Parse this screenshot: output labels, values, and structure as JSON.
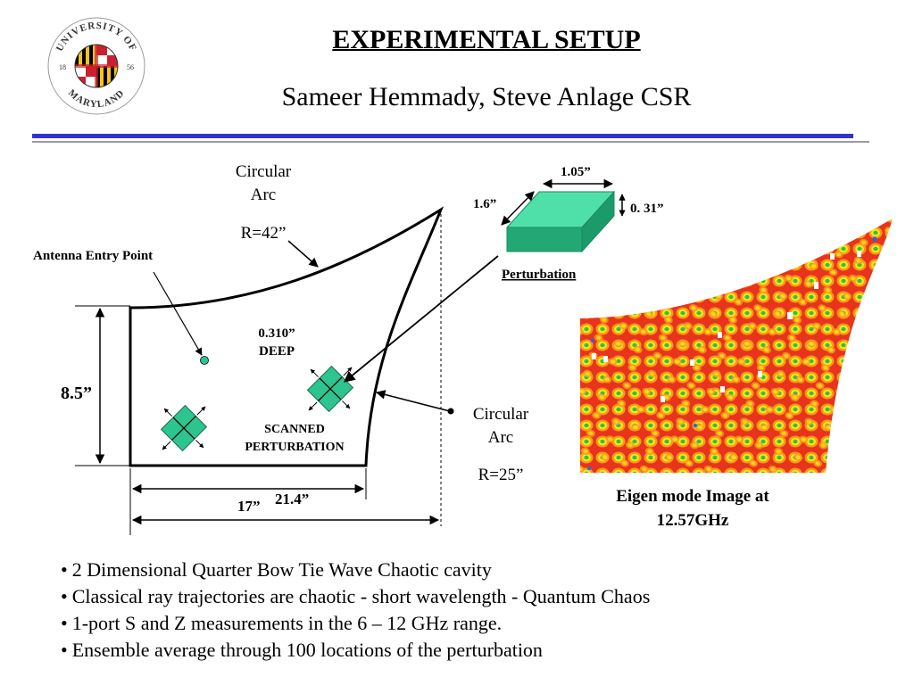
{
  "title": "EXPERIMENTAL SETUP",
  "subtitle": "Sameer Hemmady, Steve Anlage CSR",
  "logo": {
    "top_text": "UNIVERSITY OF",
    "bottom_text": "MARYLAND",
    "year_left": "18",
    "year_right": "56",
    "colors": [
      "#cc1f2f",
      "#f5c518",
      "#000000",
      "#ffffff"
    ]
  },
  "diagram": {
    "arc_top_label_line1": "Circular",
    "arc_top_label_line2": "Arc",
    "arc_top_radius": "R=42”",
    "antenna_label": "Antenna Entry Point",
    "depth_line1": "0.310”",
    "depth_line2": "DEEP",
    "scanned_line1": "SCANNED",
    "scanned_line2": "PERTURBATION",
    "height_label": "8.5”",
    "width_inner_label": "17”",
    "width_outer_label": "21.4”",
    "arc_right_label_line1": "Circular",
    "arc_right_label_line2": "Arc",
    "arc_right_radius": "R=25”",
    "perturbation_label": "Perturbation",
    "dim_width": "1.05”",
    "dim_depth": "1.6”",
    "dim_height": "0. 31”"
  },
  "eigen_caption_line1": "Eigen mode Image at",
  "eigen_caption_line2": "12.57GHz",
  "bullets": [
    "2 Dimensional Quarter Bow Tie Wave Chaotic cavity",
    "Classical ray trajectories are chaotic - short wavelength   -  Quantum Chaos",
    "1-port S and Z measurements in the 6 – 12 GHz range.",
    "Ensemble average through 100 locations of the perturbation"
  ],
  "colors": {
    "rule_blue": "#3333cc",
    "rule_gray": "#9999aa",
    "perturbation_green": "#2ec48f",
    "eigen_red": "#e8341c",
    "eigen_orange": "#ff9a1a",
    "eigen_yellow": "#f6e61a",
    "eigen_green": "#22c840"
  }
}
